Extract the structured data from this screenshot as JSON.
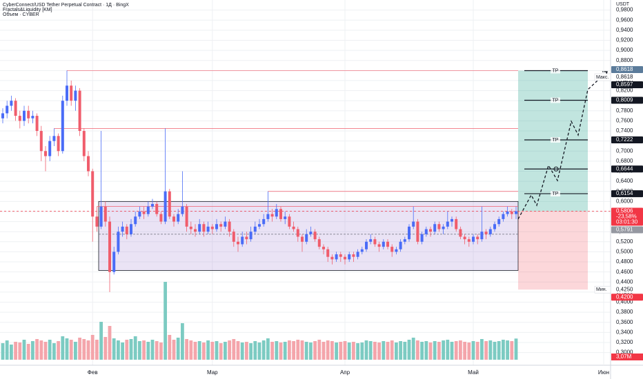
{
  "chart_data": {
    "type": "candlestick",
    "title": "CyberConnect/USD Tether Perpetual Contract · 1Д · BingX",
    "indicators": [
      "Fractals&Liquidity [KM]",
      "Объем · CYBER"
    ],
    "currency": "USDT",
    "categories": [
      null,
      null,
      null,
      null,
      null,
      null,
      null,
      null,
      null,
      null,
      null,
      null,
      null,
      null,
      null,
      null,
      null,
      null,
      null,
      null,
      null,
      "Фев",
      null,
      null,
      null,
      null,
      null,
      null,
      null,
      null,
      null,
      null,
      null,
      null,
      null,
      null,
      null,
      null,
      null,
      null,
      null,
      null,
      null,
      null,
      null,
      null,
      null,
      null,
      null,
      "Мар",
      null,
      null,
      null,
      null,
      null,
      null,
      null,
      null,
      null,
      null,
      null,
      null,
      null,
      null,
      null,
      null,
      null,
      null,
      null,
      null,
      null,
      null,
      null,
      null,
      null,
      null,
      null,
      null,
      null,
      null,
      "Апр",
      null,
      null,
      null,
      null,
      null,
      null,
      null,
      null,
      null,
      null,
      null,
      null,
      null,
      null,
      null,
      null,
      null,
      null,
      null,
      null,
      null,
      null,
      null,
      null,
      null,
      null,
      null,
      null,
      null,
      "Май",
      null,
      null,
      null,
      null,
      null,
      null,
      null,
      null,
      null,
      null
    ],
    "future_category": "Июн",
    "ohlc": [
      [
        0.765,
        0.785,
        0.755,
        0.775
      ],
      [
        0.775,
        0.8,
        0.765,
        0.79
      ],
      [
        0.79,
        0.81,
        0.78,
        0.8
      ],
      [
        0.8,
        0.805,
        0.76,
        0.77
      ],
      [
        0.77,
        0.78,
        0.745,
        0.76
      ],
      [
        0.76,
        0.79,
        0.75,
        0.78
      ],
      [
        0.78,
        0.79,
        0.755,
        0.765
      ],
      [
        0.765,
        0.78,
        0.755,
        0.77
      ],
      [
        0.77,
        0.775,
        0.73,
        0.74
      ],
      [
        0.74,
        0.75,
        0.68,
        0.7
      ],
      [
        0.7,
        0.71,
        0.66,
        0.69
      ],
      [
        0.69,
        0.73,
        0.68,
        0.72
      ],
      [
        0.72,
        0.745,
        0.71,
        0.73
      ],
      [
        0.73,
        0.735,
        0.69,
        0.7
      ],
      [
        0.7,
        0.81,
        0.695,
        0.8
      ],
      [
        0.8,
        0.86,
        0.79,
        0.83
      ],
      [
        0.83,
        0.84,
        0.79,
        0.8
      ],
      [
        0.8,
        0.83,
        0.78,
        0.82
      ],
      [
        0.82,
        0.825,
        0.73,
        0.74
      ],
      [
        0.74,
        0.745,
        0.68,
        0.69
      ],
      [
        0.69,
        0.7,
        0.65,
        0.66
      ],
      [
        0.66,
        0.665,
        0.52,
        0.57
      ],
      [
        0.57,
        0.59,
        0.54,
        0.55
      ],
      [
        0.55,
        0.74,
        0.545,
        0.59
      ],
      [
        0.59,
        0.6,
        0.55,
        0.56
      ],
      [
        0.56,
        0.57,
        0.42,
        0.46
      ],
      [
        0.46,
        0.51,
        0.455,
        0.5
      ],
      [
        0.5,
        0.55,
        0.495,
        0.54
      ],
      [
        0.54,
        0.56,
        0.53,
        0.55
      ],
      [
        0.55,
        0.555,
        0.525,
        0.535
      ],
      [
        0.535,
        0.565,
        0.53,
        0.555
      ],
      [
        0.555,
        0.58,
        0.55,
        0.57
      ],
      [
        0.57,
        0.59,
        0.565,
        0.58
      ],
      [
        0.58,
        0.59,
        0.565,
        0.575
      ],
      [
        0.575,
        0.6,
        0.57,
        0.59
      ],
      [
        0.59,
        0.605,
        0.585,
        0.595
      ],
      [
        0.595,
        0.6,
        0.57,
        0.575
      ],
      [
        0.575,
        0.58,
        0.555,
        0.56
      ],
      [
        0.56,
        0.745,
        0.555,
        0.62
      ],
      [
        0.62,
        0.625,
        0.565,
        0.57
      ],
      [
        0.57,
        0.575,
        0.55,
        0.56
      ],
      [
        0.56,
        0.585,
        0.555,
        0.575
      ],
      [
        0.575,
        0.66,
        0.57,
        0.59
      ],
      [
        0.59,
        0.595,
        0.54,
        0.55
      ],
      [
        0.55,
        0.56,
        0.535,
        0.545
      ],
      [
        0.545,
        0.555,
        0.53,
        0.54
      ],
      [
        0.54,
        0.565,
        0.535,
        0.555
      ],
      [
        0.555,
        0.56,
        0.53,
        0.54
      ],
      [
        0.54,
        0.56,
        0.535,
        0.55
      ],
      [
        0.55,
        0.555,
        0.535,
        0.545
      ],
      [
        0.545,
        0.565,
        0.54,
        0.555
      ],
      [
        0.555,
        0.56,
        0.54,
        0.55
      ],
      [
        0.55,
        0.57,
        0.545,
        0.56
      ],
      [
        0.56,
        0.565,
        0.53,
        0.54
      ],
      [
        0.54,
        0.545,
        0.51,
        0.52
      ],
      [
        0.52,
        0.53,
        0.5,
        0.515
      ],
      [
        0.515,
        0.54,
        0.51,
        0.53
      ],
      [
        0.53,
        0.54,
        0.515,
        0.525
      ],
      [
        0.525,
        0.55,
        0.52,
        0.54
      ],
      [
        0.54,
        0.56,
        0.535,
        0.55
      ],
      [
        0.55,
        0.565,
        0.545,
        0.555
      ],
      [
        0.555,
        0.575,
        0.55,
        0.565
      ],
      [
        0.565,
        0.62,
        0.56,
        0.575
      ],
      [
        0.575,
        0.585,
        0.56,
        0.57
      ],
      [
        0.57,
        0.595,
        0.565,
        0.585
      ],
      [
        0.585,
        0.59,
        0.56,
        0.565
      ],
      [
        0.565,
        0.58,
        0.555,
        0.57
      ],
      [
        0.57,
        0.575,
        0.545,
        0.55
      ],
      [
        0.55,
        0.56,
        0.54,
        0.545
      ],
      [
        0.545,
        0.55,
        0.52,
        0.53
      ],
      [
        0.53,
        0.535,
        0.5,
        0.52
      ],
      [
        0.52,
        0.545,
        0.515,
        0.535
      ],
      [
        0.535,
        0.55,
        0.53,
        0.54
      ],
      [
        0.54,
        0.545,
        0.52,
        0.525
      ],
      [
        0.525,
        0.53,
        0.505,
        0.51
      ],
      [
        0.51,
        0.515,
        0.495,
        0.505
      ],
      [
        0.505,
        0.51,
        0.48,
        0.49
      ],
      [
        0.49,
        0.495,
        0.475,
        0.485
      ],
      [
        0.485,
        0.5,
        0.48,
        0.495
      ],
      [
        0.495,
        0.5,
        0.48,
        0.49
      ],
      [
        0.49,
        0.495,
        0.475,
        0.485
      ],
      [
        0.485,
        0.5,
        0.48,
        0.495
      ],
      [
        0.495,
        0.5,
        0.48,
        0.49
      ],
      [
        0.49,
        0.505,
        0.485,
        0.5
      ],
      [
        0.5,
        0.51,
        0.495,
        0.505
      ],
      [
        0.505,
        0.525,
        0.5,
        0.52
      ],
      [
        0.52,
        0.535,
        0.515,
        0.525
      ],
      [
        0.525,
        0.53,
        0.51,
        0.515
      ],
      [
        0.515,
        0.52,
        0.5,
        0.51
      ],
      [
        0.51,
        0.525,
        0.505,
        0.52
      ],
      [
        0.52,
        0.525,
        0.505,
        0.51
      ],
      [
        0.51,
        0.515,
        0.49,
        0.5
      ],
      [
        0.5,
        0.51,
        0.495,
        0.505
      ],
      [
        0.505,
        0.525,
        0.5,
        0.52
      ],
      [
        0.52,
        0.53,
        0.515,
        0.525
      ],
      [
        0.525,
        0.555,
        0.52,
        0.55
      ],
      [
        0.55,
        0.59,
        0.545,
        0.56
      ],
      [
        0.56,
        0.565,
        0.515,
        0.52
      ],
      [
        0.52,
        0.54,
        0.515,
        0.535
      ],
      [
        0.535,
        0.55,
        0.53,
        0.545
      ],
      [
        0.545,
        0.55,
        0.53,
        0.54
      ],
      [
        0.54,
        0.56,
        0.535,
        0.555
      ],
      [
        0.555,
        0.56,
        0.54,
        0.545
      ],
      [
        0.545,
        0.555,
        0.535,
        0.55
      ],
      [
        0.55,
        0.58,
        0.545,
        0.56
      ],
      [
        0.56,
        0.57,
        0.55,
        0.565
      ],
      [
        0.565,
        0.57,
        0.54,
        0.545
      ],
      [
        0.545,
        0.55,
        0.525,
        0.53
      ],
      [
        0.53,
        0.535,
        0.515,
        0.525
      ],
      [
        0.525,
        0.53,
        0.51,
        0.52
      ],
      [
        0.52,
        0.535,
        0.515,
        0.53
      ],
      [
        0.53,
        0.535,
        0.515,
        0.525
      ],
      [
        0.525,
        0.59,
        0.52,
        0.54
      ],
      [
        0.54,
        0.545,
        0.525,
        0.535
      ],
      [
        0.535,
        0.55,
        0.53,
        0.545
      ],
      [
        0.545,
        0.56,
        0.54,
        0.555
      ],
      [
        0.555,
        0.57,
        0.55,
        0.565
      ],
      [
        0.565,
        0.58,
        0.56,
        0.575
      ],
      [
        0.575,
        0.59,
        0.57,
        0.58
      ],
      [
        0.58,
        0.585,
        0.565,
        0.575
      ],
      [
        0.575,
        0.59,
        0.565,
        0.5806
      ]
    ],
    "up_color": "#4a6cf7",
    "down_color": "#f05d6c",
    "volume": {
      "values": [
        2.4,
        2.8,
        2.2,
        2.6,
        2.5,
        2.9,
        2.3,
        2.7,
        3.0,
        2.8,
        2.6,
        2.9,
        2.4,
        2.7,
        3.4,
        3.1,
        2.9,
        2.6,
        3.2,
        3.0,
        2.8,
        3.6,
        2.9,
        5.5,
        3.3,
        4.9,
        3.1,
        2.8,
        2.5,
        2.9,
        3.0,
        3.4,
        2.7,
        2.8,
        2.6,
        2.9,
        2.7,
        2.5,
        11.3,
        3.6,
        2.9,
        3.2,
        5.3,
        3.0,
        2.8,
        2.6,
        2.7,
        2.5,
        2.8,
        2.6,
        2.7,
        2.4,
        2.6,
        2.8,
        3.0,
        2.7,
        2.5,
        2.6,
        2.4,
        2.7,
        2.5,
        2.8,
        3.1,
        2.6,
        2.7,
        2.5,
        2.6,
        2.8,
        2.7,
        2.9,
        2.8,
        2.6,
        2.5,
        2.7,
        2.9,
        2.6,
        2.8,
        2.7,
        2.5,
        2.6,
        2.7,
        2.5,
        2.6,
        2.4,
        2.5,
        2.8,
        2.7,
        2.6,
        2.5,
        2.7,
        2.6,
        2.8,
        2.5,
        2.7,
        2.6,
        2.9,
        3.2,
        2.8,
        2.6,
        2.7,
        2.5,
        2.7,
        2.6,
        2.8,
        2.9,
        2.6,
        2.7,
        2.8,
        2.6,
        2.5,
        2.7,
        2.6,
        3.0,
        2.7,
        2.8,
        2.6,
        2.7,
        2.9,
        2.8,
        2.7,
        3.07
      ],
      "up_color": "#7ccbc2",
      "down_color": "#f4a5ab",
      "last_label": "3,07M"
    },
    "ylim": [
      0.277,
      1.0
    ],
    "yticks": [
      {
        "value": 0.3,
        "label": "0,3000"
      },
      {
        "value": 0.32,
        "label": "0,3200"
      },
      {
        "value": 0.34,
        "label": "0,3400"
      },
      {
        "value": 0.36,
        "label": "0,3600"
      },
      {
        "value": 0.38,
        "label": "0,3800"
      },
      {
        "value": 0.4,
        "label": "0,4000"
      },
      {
        "value": 0.42,
        "label": "0,4200"
      },
      {
        "value": 0.44,
        "label": "0,4400"
      },
      {
        "value": 0.46,
        "label": "0,4600"
      },
      {
        "value": 0.48,
        "label": "0,4800"
      },
      {
        "value": 0.5,
        "label": "0,5000"
      },
      {
        "value": 0.52,
        "label": "0,5200"
      },
      {
        "value": 0.54,
        "label": "0,5400"
      },
      {
        "value": 0.56,
        "label": "0,5600"
      },
      {
        "value": 0.58,
        "label": "0,5800"
      },
      {
        "value": 0.6,
        "label": "0,6000"
      },
      {
        "value": 0.62,
        "label": "0,6200"
      },
      {
        "value": 0.64,
        "label": "0,6400"
      },
      {
        "value": 0.66,
        "label": "0,6600"
      },
      {
        "value": 0.68,
        "label": "0,6800"
      },
      {
        "value": 0.7,
        "label": "0,7000"
      },
      {
        "value": 0.72,
        "label": "0,7200"
      },
      {
        "value": 0.74,
        "label": "0,7400"
      },
      {
        "value": 0.76,
        "label": "0,7600"
      },
      {
        "value": 0.78,
        "label": "0,7800"
      },
      {
        "value": 0.8,
        "label": "0,8000"
      },
      {
        "value": 0.82,
        "label": "0,8200"
      },
      {
        "value": 0.84,
        "label": "0,8400"
      },
      {
        "value": 0.86,
        "label": "0,8600"
      },
      {
        "value": 0.88,
        "label": "0,8800"
      },
      {
        "value": 0.9,
        "label": "0,9000"
      },
      {
        "value": 0.92,
        "label": "0,9200"
      },
      {
        "value": 0.94,
        "label": "0,9400"
      },
      {
        "value": 0.96,
        "label": "0,9600"
      },
      {
        "value": 0.98,
        "label": "0,9800"
      }
    ],
    "grid": true,
    "range_box": {
      "top": 0.6,
      "bottom": 0.463,
      "mid": 0.535,
      "color": "#9575cd"
    },
    "liquidity_levels": [
      0.86,
      0.745,
      0.62,
      0.59
    ],
    "position": {
      "entry": 0.5806,
      "stop": 0.425,
      "target": 0.8597,
      "take_profits": [
        {
          "price": 0.6154,
          "label": "TP"
        },
        {
          "price": 0.6644
        },
        {
          "price": 0.7222,
          "label": "TP"
        },
        {
          "price": 0.8009,
          "label": "TP"
        },
        {
          "price": 0.8597,
          "label": "TP"
        }
      ]
    },
    "price_labels": [
      {
        "value": 0.8618,
        "label": "0,8618",
        "bg": "#5b7b9a",
        "color": "#ffffff"
      },
      {
        "value": 0.8618,
        "label": "0,8618",
        "tag": "Макс.",
        "bg": "#ffffff",
        "color": "#131722"
      },
      {
        "value": 0.8597,
        "label": "0,8597",
        "bg": "#131722",
        "color": "#ffffff"
      },
      {
        "value": 0.8009,
        "label": "0,8009",
        "bg": "#131722",
        "color": "#ffffff"
      },
      {
        "value": 0.7222,
        "label": "0,7222",
        "bg": "#131722",
        "color": "#ffffff"
      },
      {
        "value": 0.6644,
        "label": "0,6644",
        "bg": "#131722",
        "color": "#ffffff"
      },
      {
        "value": 0.6154,
        "label": "0,6154",
        "bg": "#131722",
        "color": "#ffffff"
      },
      {
        "value": 0.5806,
        "label": "0,5806",
        "sub": [
          "-23,58%",
          "03:01:30"
        ],
        "bg": "#f23645",
        "color": "#ffffff"
      },
      {
        "value": 0.5791,
        "label": "0,5791",
        "bg": "#9598a1",
        "color": "#ffffff"
      },
      {
        "value": 0.425,
        "label": "0,4250",
        "tag": "Мин.",
        "bg": "#ffffff",
        "color": "#131722"
      },
      {
        "value": 0.42,
        "label": "0,4200",
        "bg": "#f23645",
        "color": "#ffffff"
      }
    ]
  }
}
